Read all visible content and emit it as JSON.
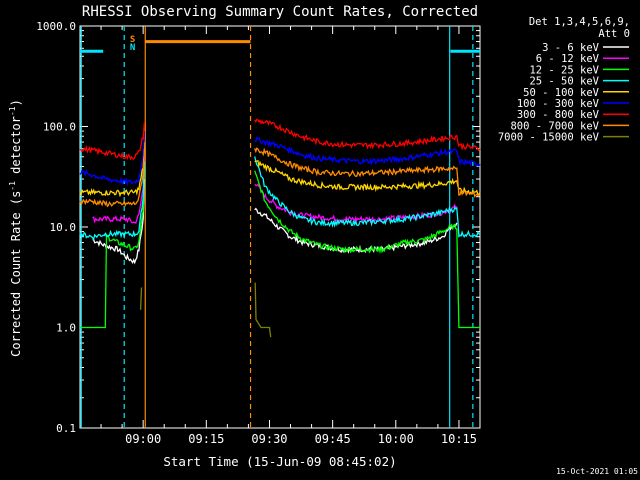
{
  "chart_data": {
    "type": "line",
    "title": "RHESSI Observing Summary Count Rates, Corrected",
    "xlabel": "Start Time (15-Jun-09 08:45:02)",
    "ylabel_main": "Corrected Count Rate (s",
    "ylabel_sup1": "-1",
    "ylabel_mid": " detector",
    "ylabel_sup2": "-1",
    "ylabel_end": ")",
    "y_scale": "log",
    "ylim": [
      0.1,
      1000
    ],
    "xlim_minutes": [
      0,
      95
    ],
    "x_ticks": [
      {
        "minute": 15,
        "label": "09:00"
      },
      {
        "minute": 30,
        "label": "09:15"
      },
      {
        "minute": 45,
        "label": "09:30"
      },
      {
        "minute": 60,
        "label": "09:45"
      },
      {
        "minute": 75,
        "label": "10:00"
      },
      {
        "minute": 90,
        "label": "10:15"
      }
    ],
    "y_ticks": [
      {
        "value": 1000,
        "label": "1000.0"
      },
      {
        "value": 100,
        "label": "100.0"
      },
      {
        "value": 10,
        "label": "10.0"
      },
      {
        "value": 1,
        "label": "1.0"
      },
      {
        "value": 0.1,
        "label": "0.1"
      }
    ],
    "legend_header": [
      "Det 1,3,4,5,6,9,",
      "Att 0"
    ],
    "legend_position": "right",
    "timestamp": "15-Oct-2021 01:05",
    "flag_labels": [
      {
        "label": "S",
        "color": "#ff8c00"
      },
      {
        "label": "N",
        "color": "#00e5ff"
      }
    ],
    "flags": [
      {
        "name": "SAA",
        "color": "#ff8c00",
        "start_min": 15.5,
        "end_min": 40.5,
        "level": 700
      },
      {
        "name": "Night",
        "color": "#00e5ff",
        "start_min": 0,
        "end_min": 5.5,
        "level": 560
      },
      {
        "name": "Night",
        "color": "#00e5ff",
        "start_min": 88,
        "end_min": 95,
        "level": 560
      }
    ],
    "vertical_markers": [
      {
        "minute": 0.3,
        "color": "#00e5ff",
        "style": "solid"
      },
      {
        "minute": 10.5,
        "color": "#00e5ff",
        "style": "dashed"
      },
      {
        "minute": 15.5,
        "color": "#ff8c00",
        "style": "solid"
      },
      {
        "minute": 40.5,
        "color": "#ff8c00",
        "style": "dashed"
      },
      {
        "minute": 87.8,
        "color": "#00e5ff",
        "style": "solid"
      },
      {
        "minute": 93.3,
        "color": "#00e5ff",
        "style": "dashed"
      }
    ],
    "series": [
      {
        "name": "3 - 6 keV",
        "color": "#ffffff",
        "segments": [
          [
            [
              3,
              7.5
            ],
            [
              6,
              6.5
            ],
            [
              9,
              6
            ],
            [
              11,
              5
            ],
            [
              13,
              4.5
            ],
            [
              14,
              6
            ],
            [
              15,
              12
            ],
            [
              15.3,
              30
            ]
          ],
          [
            [
              41.5,
              15
            ],
            [
              44,
              13
            ],
            [
              47,
              10
            ],
            [
              50,
              8
            ],
            [
              53,
              7
            ],
            [
              57,
              6.5
            ],
            [
              62,
              6
            ],
            [
              67,
              6
            ],
            [
              72,
              6
            ],
            [
              77,
              6.5
            ],
            [
              82,
              7
            ],
            [
              86,
              8
            ],
            [
              88,
              10
            ],
            [
              89.5,
              11
            ]
          ]
        ]
      },
      {
        "name": "6 - 12 keV",
        "color": "#ff00ff",
        "segments": [
          [
            [
              3,
              12
            ],
            [
              6,
              12
            ],
            [
              9,
              12
            ],
            [
              11,
              12
            ],
            [
              13,
              11
            ],
            [
              14,
              13
            ],
            [
              15,
              25
            ],
            [
              15.3,
              50
            ]
          ],
          [
            [
              41.5,
              28
            ],
            [
              44,
              20
            ],
            [
              47,
              16
            ],
            [
              50,
              14
            ],
            [
              53,
              13
            ],
            [
              57,
              12.5
            ],
            [
              62,
              12
            ],
            [
              67,
              12
            ],
            [
              72,
              12
            ],
            [
              77,
              12.5
            ],
            [
              82,
              13
            ],
            [
              86,
              14
            ],
            [
              88,
              15
            ],
            [
              89.5,
              16
            ]
          ]
        ]
      },
      {
        "name": "12 - 25 keV",
        "color": "#00ff00",
        "segments": [
          [
            [
              0,
              1
            ],
            [
              6,
              1
            ],
            [
              6.3,
              8
            ],
            [
              9,
              7
            ],
            [
              11,
              6.5
            ],
            [
              13,
              6
            ],
            [
              14,
              7
            ],
            [
              15,
              15
            ],
            [
              15.3,
              40
            ]
          ],
          [
            [
              41.5,
              35
            ],
            [
              44,
              18
            ],
            [
              47,
              12
            ],
            [
              50,
              9
            ],
            [
              53,
              7.5
            ],
            [
              57,
              6.5
            ],
            [
              62,
              6
            ],
            [
              67,
              6
            ],
            [
              72,
              6
            ],
            [
              77,
              7
            ],
            [
              82,
              7.5
            ],
            [
              86,
              9
            ],
            [
              88,
              10
            ],
            [
              89.5,
              10
            ],
            [
              90,
              1
            ],
            [
              95,
              1
            ]
          ]
        ]
      },
      {
        "name": "25 - 50 keV",
        "color": "#00ffff",
        "segments": [
          [
            [
              0,
              8.5
            ],
            [
              3,
              8
            ],
            [
              6,
              8.5
            ],
            [
              9,
              8.5
            ],
            [
              11,
              8.5
            ],
            [
              13,
              8.5
            ],
            [
              14,
              9
            ],
            [
              15,
              20
            ],
            [
              15.3,
              45
            ]
          ],
          [
            [
              41.5,
              50
            ],
            [
              44,
              25
            ],
            [
              47,
              18
            ],
            [
              50,
              14
            ],
            [
              53,
              12
            ],
            [
              57,
              11
            ],
            [
              62,
              11
            ],
            [
              67,
              11
            ],
            [
              72,
              11.5
            ],
            [
              77,
              12
            ],
            [
              82,
              13
            ],
            [
              86,
              14
            ],
            [
              88,
              15
            ],
            [
              89.5,
              15
            ],
            [
              90,
              8.5
            ],
            [
              95,
              8.5
            ]
          ]
        ]
      },
      {
        "name": "50 - 100 keV",
        "color": "#ffd700",
        "segments": [
          [
            [
              0,
              22
            ],
            [
              3,
              22
            ],
            [
              6,
              22
            ],
            [
              9,
              22
            ],
            [
              11,
              22
            ],
            [
              13,
              22
            ],
            [
              14,
              24
            ],
            [
              15,
              40
            ],
            [
              15.3,
              70
            ]
          ],
          [
            [
              41.5,
              45
            ],
            [
              44,
              40
            ],
            [
              47,
              35
            ],
            [
              50,
              30
            ],
            [
              53,
              28
            ],
            [
              57,
              26
            ],
            [
              62,
              25
            ],
            [
              67,
              25
            ],
            [
              72,
              25
            ],
            [
              77,
              25.5
            ],
            [
              82,
              26
            ],
            [
              86,
              27
            ],
            [
              88,
              28
            ],
            [
              89.5,
              29
            ],
            [
              90,
              23
            ],
            [
              95,
              22
            ]
          ]
        ]
      },
      {
        "name": "100 - 300 keV",
        "color": "#0000ff",
        "segments": [
          [
            [
              0,
              35
            ],
            [
              3,
              33
            ],
            [
              6,
              30
            ],
            [
              9,
              29
            ],
            [
              11,
              28
            ],
            [
              13,
              28
            ],
            [
              14,
              30
            ],
            [
              15,
              55
            ],
            [
              15.3,
              90
            ]
          ],
          [
            [
              41.5,
              75
            ],
            [
              44,
              70
            ],
            [
              47,
              65
            ],
            [
              50,
              58
            ],
            [
              53,
              52
            ],
            [
              57,
              48
            ],
            [
              62,
              46
            ],
            [
              67,
              45
            ],
            [
              72,
              46
            ],
            [
              77,
              48
            ],
            [
              82,
              52
            ],
            [
              86,
              55
            ],
            [
              88,
              56
            ],
            [
              89.5,
              57
            ],
            [
              90,
              45
            ],
            [
              95,
              42
            ]
          ]
        ]
      },
      {
        "name": "300 - 800 keV",
        "color": "#ff0000",
        "segments": [
          [
            [
              0,
              60
            ],
            [
              3,
              58
            ],
            [
              6,
              55
            ],
            [
              9,
              52
            ],
            [
              11,
              50
            ],
            [
              13,
              50
            ],
            [
              14,
              55
            ],
            [
              15,
              80
            ],
            [
              15.3,
              110
            ]
          ],
          [
            [
              41.5,
              115
            ],
            [
              44,
              110
            ],
            [
              47,
              100
            ],
            [
              50,
              88
            ],
            [
              53,
              78
            ],
            [
              57,
              70
            ],
            [
              62,
              66
            ],
            [
              67,
              65
            ],
            [
              72,
              66
            ],
            [
              77,
              68
            ],
            [
              82,
              72
            ],
            [
              86,
              76
            ],
            [
              88,
              78
            ],
            [
              89.5,
              80
            ],
            [
              90,
              65
            ],
            [
              95,
              60
            ]
          ]
        ]
      },
      {
        "name": "800 - 7000 keV",
        "color": "#ff8c00",
        "segments": [
          [
            [
              0,
              18
            ],
            [
              3,
              18
            ],
            [
              6,
              17
            ],
            [
              9,
              17
            ],
            [
              11,
              17
            ],
            [
              13,
              17
            ],
            [
              14,
              19
            ],
            [
              15,
              35
            ],
            [
              15.3,
              60
            ]
          ],
          [
            [
              41.5,
              60
            ],
            [
              44,
              55
            ],
            [
              47,
              48
            ],
            [
              50,
              42
            ],
            [
              53,
              38
            ],
            [
              57,
              35
            ],
            [
              62,
              34
            ],
            [
              67,
              34
            ],
            [
              72,
              35
            ],
            [
              77,
              36
            ],
            [
              82,
              37
            ],
            [
              86,
              38
            ],
            [
              88,
              38
            ],
            [
              89.5,
              38
            ],
            [
              90,
              22
            ],
            [
              95,
              21
            ]
          ]
        ]
      },
      {
        "name": "7000 - 15000 keV",
        "color": "#808000",
        "segments": [
          [
            [
              14.4,
              1.5
            ],
            [
              14.6,
              2.5
            ]
          ],
          [
            [
              41.6,
              2.8
            ],
            [
              41.8,
              1.2
            ],
            [
              43,
              1
            ],
            [
              45,
              1
            ],
            [
              45.3,
              0.8
            ]
          ]
        ]
      }
    ]
  }
}
